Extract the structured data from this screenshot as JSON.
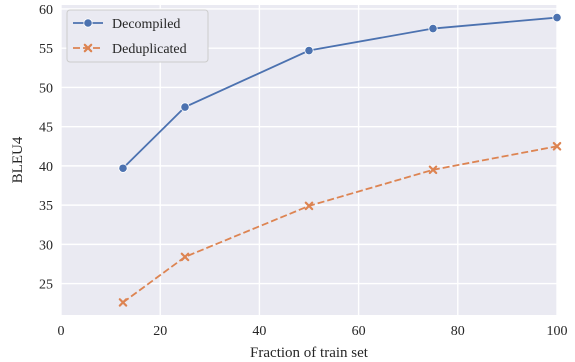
{
  "chart_data": {
    "type": "line",
    "title": "",
    "xlabel": "Fraction of train set",
    "ylabel": "BLEU4",
    "xlim": [
      0,
      100
    ],
    "ylim": [
      21,
      60.5
    ],
    "xticks": [
      0,
      20,
      40,
      60,
      80,
      100
    ],
    "yticks": [
      25,
      30,
      35,
      40,
      45,
      50,
      55,
      60
    ],
    "grid": true,
    "legend_position": "top-left",
    "background": "#eaeaf2",
    "series": [
      {
        "name": "Decompiled",
        "color": "#4c72b0",
        "line_style": "solid",
        "marker": "circle",
        "x": [
          12.5,
          25,
          50,
          75,
          100
        ],
        "y": [
          39.7,
          47.5,
          54.7,
          57.5,
          58.9
        ]
      },
      {
        "name": "Deduplicated",
        "color": "#dd8452",
        "line_style": "dashed",
        "marker": "x",
        "x": [
          12.5,
          25,
          50,
          75,
          100
        ],
        "y": [
          22.6,
          28.4,
          34.9,
          39.5,
          42.5
        ]
      }
    ]
  }
}
